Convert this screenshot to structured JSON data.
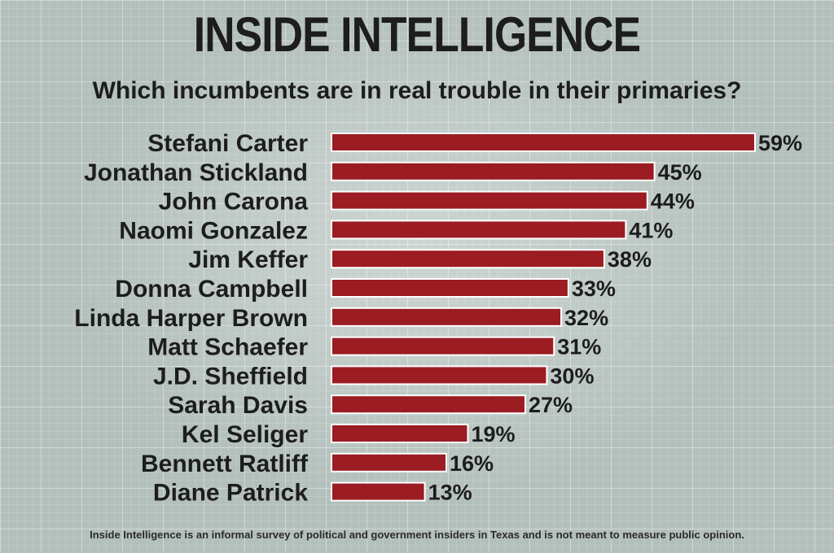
{
  "title": "INSIDE INTELLIGENCE",
  "subtitle": "Which incumbents are in real trouble in their primaries?",
  "footnote": "Inside Intelligence is an informal survey of political and government insiders in Texas and is not meant to measure public opinion.",
  "colors": {
    "bar": "#9b1c22",
    "bar_border": "#ffffff",
    "text": "#1d1d1d"
  },
  "chart_data": {
    "type": "bar",
    "orientation": "horizontal",
    "value_suffix": "%",
    "categories": [
      "Stefani Carter",
      "Jonathan Stickland",
      "John Carona",
      "Naomi Gonzalez",
      "Jim Keffer",
      "Donna Campbell",
      "Linda Harper Brown",
      "Matt Schaefer",
      "J.D. Sheffield",
      "Sarah Davis",
      "Kel Seliger",
      "Bennett Ratliff",
      "Diane Patrick"
    ],
    "values": [
      59,
      45,
      44,
      41,
      38,
      33,
      32,
      31,
      30,
      27,
      19,
      16,
      13
    ],
    "data_labels": [
      "59%",
      "45%",
      "44%",
      "41%",
      "38%",
      "33%",
      "32%",
      "31%",
      "30%",
      "27%",
      "19%",
      "16%",
      "13%"
    ],
    "xlim": [
      0,
      59
    ],
    "grid": false,
    "legend": false
  }
}
